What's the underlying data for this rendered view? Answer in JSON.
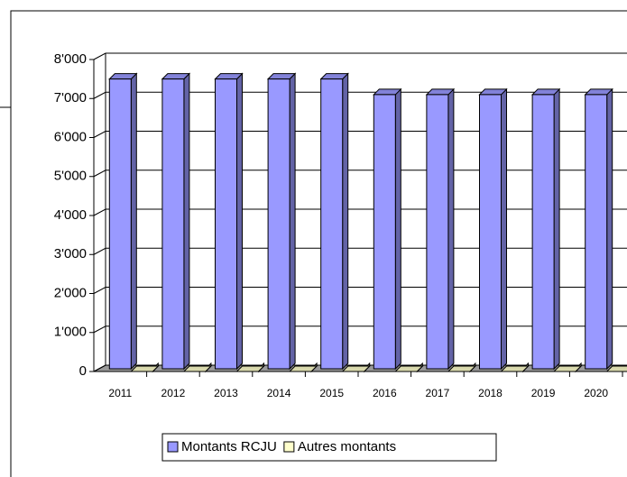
{
  "chart_data": {
    "type": "bar3d",
    "categories": [
      "2011",
      "2012",
      "2013",
      "2014",
      "2015",
      "2016",
      "2017",
      "2018",
      "2019",
      "2020"
    ],
    "series": [
      {
        "name": "Montants RCJU",
        "color": "#9999ff",
        "values": [
          7500,
          7500,
          7500,
          7500,
          7500,
          7100,
          7100,
          7100,
          7100,
          7100
        ]
      },
      {
        "name": "Autres montants",
        "color": "#ffffcc",
        "values": [
          0,
          0,
          0,
          0,
          0,
          0,
          0,
          0,
          0,
          0
        ]
      }
    ],
    "ylim": [
      0,
      8000
    ],
    "yticks": [
      0,
      {
        "value": 1000,
        "label": "1'000"
      },
      {
        "value": 2000,
        "label": "2'000"
      },
      {
        "value": 3000,
        "label": "3'000"
      },
      {
        "value": 4000,
        "label": "4'000"
      },
      {
        "value": 5000,
        "label": "5'000"
      },
      {
        "value": 6000,
        "label": "6'000"
      },
      {
        "value": 7000,
        "label": "7'000"
      },
      {
        "value": 8000,
        "label": "8'000"
      }
    ],
    "grid": true
  }
}
